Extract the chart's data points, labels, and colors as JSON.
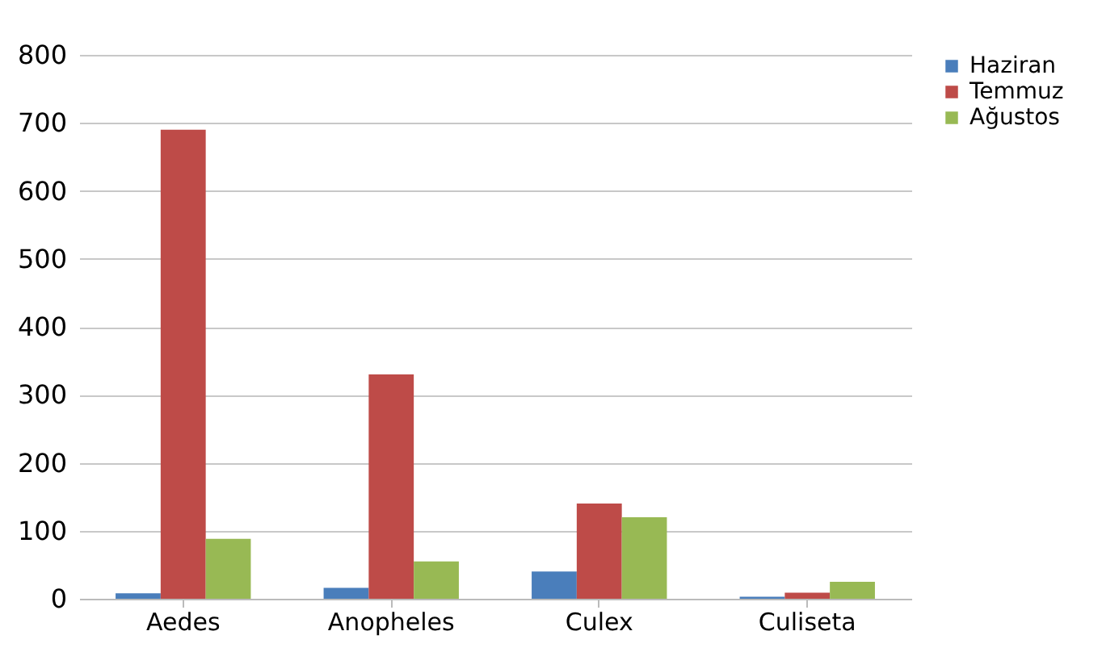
{
  "chart_data": {
    "type": "bar",
    "categories": [
      "Aedes",
      "Anopheles",
      "Culex",
      "Culiseta"
    ],
    "series": [
      {
        "name": "Haziran",
        "color": "#4a7ebb",
        "values": [
          8,
          16,
          40,
          3
        ]
      },
      {
        "name": "Temmuz",
        "color": "#be4b48",
        "values": [
          690,
          330,
          140,
          9
        ]
      },
      {
        "name": "Ağustos",
        "color": "#98b954",
        "values": [
          88,
          55,
          120,
          25
        ]
      }
    ],
    "ylim": [
      0,
      800
    ],
    "yticks": [
      0,
      100,
      200,
      300,
      400,
      500,
      600,
      700,
      800
    ],
    "grid": "y",
    "legend": "right"
  }
}
